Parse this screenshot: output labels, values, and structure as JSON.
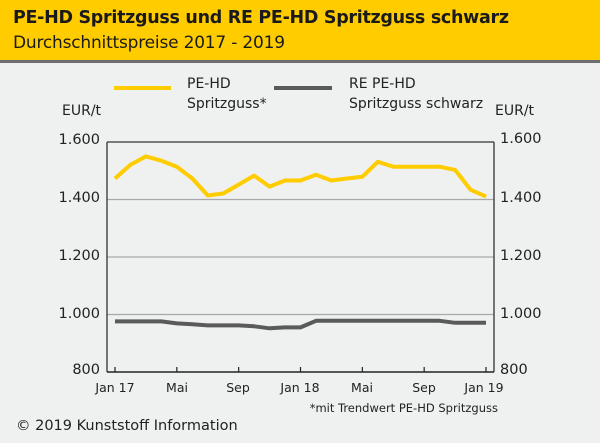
{
  "header": {
    "title": "PE-HD Spritzguss und RE PE-HD Spritzguss schwarz",
    "subtitle": "Durchschnittspreise 2017 - 2019"
  },
  "legend": [
    {
      "line1": "PE-HD",
      "line2": "Spritzguss*",
      "color": "#ffcc00"
    },
    {
      "line1": "RE PE-HD",
      "line2": "Spritzguss schwarz",
      "color": "#5a5a5a"
    }
  ],
  "footnote": "*mit Trendwert PE-HD Spritzguss",
  "copyright": "© 2019 Kunststoff Information",
  "chart_data": {
    "type": "line",
    "title": "PE-HD Spritzguss und RE PE-HD Spritzguss schwarz",
    "subtitle": "Durchschnittspreise 2017 - 2019",
    "ylabel_left": "EUR/t",
    "ylabel_right": "EUR/t",
    "ylim": [
      800,
      1600
    ],
    "yticks": [
      800,
      1000,
      1200,
      1400,
      1600
    ],
    "ytick_labels": [
      "800",
      "1.000",
      "1.200",
      "1.400",
      "1.600"
    ],
    "grid": "horizontal",
    "legend_position": "top",
    "x": [
      "Jan 17",
      "Feb 17",
      "Mar 17",
      "Apr 17",
      "Mai 17",
      "Jun 17",
      "Jul 17",
      "Aug 17",
      "Sep 17",
      "Okt 17",
      "Nov 17",
      "Dez 17",
      "Jan 18",
      "Feb 18",
      "Mar 18",
      "Apr 18",
      "Mai 18",
      "Jun 18",
      "Jul 18",
      "Aug 18",
      "Sep 18",
      "Okt 18",
      "Nov 18",
      "Dez 18",
      "Jan 19"
    ],
    "xtick_labels": [
      {
        "index": 0,
        "label": "Jan 17"
      },
      {
        "index": 4,
        "label": "Mai"
      },
      {
        "index": 8,
        "label": "Sep"
      },
      {
        "index": 12,
        "label": "Jan 18"
      },
      {
        "index": 16,
        "label": "Mai"
      },
      {
        "index": 20,
        "label": "Sep"
      },
      {
        "index": 24,
        "label": "Jan 19"
      }
    ],
    "series": [
      {
        "name": "PE-HD Spritzguss*",
        "color": "#ffcc00",
        "values": [
          1473,
          1521,
          1550,
          1535,
          1514,
          1473,
          1414,
          1421,
          1452,
          1483,
          1445,
          1466,
          1466,
          1486,
          1466,
          1473,
          1479,
          1531,
          1514,
          1514,
          1514,
          1514,
          1503,
          1434,
          1410
        ]
      },
      {
        "name": "RE PE-HD Spritzguss schwarz",
        "color": "#5a5a5a",
        "values": [
          976,
          976,
          976,
          976,
          969,
          966,
          962,
          962,
          962,
          959,
          952,
          955,
          955,
          978,
          978,
          978,
          978,
          978,
          978,
          978,
          978,
          978,
          971,
          971,
          971
        ]
      }
    ]
  }
}
